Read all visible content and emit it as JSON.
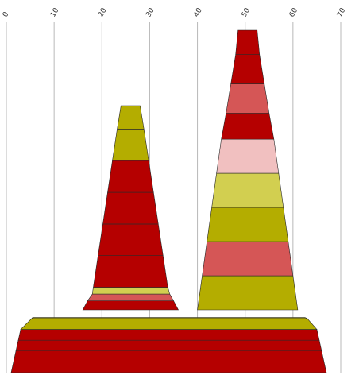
{
  "chart_data": {
    "type": "area",
    "subtype": "stacked trapezoid cones",
    "title": "",
    "xlabel": "",
    "ylabel": "",
    "x_axis": {
      "position": "top",
      "range": [
        0,
        70
      ],
      "ticks": [
        0,
        10,
        20,
        30,
        40,
        50,
        60,
        70
      ],
      "tick_labels": [
        "0",
        "10",
        "20",
        "30",
        "40",
        "50",
        "60",
        "70"
      ],
      "tick_label_rotation": "-60deg",
      "grid": true
    },
    "legend": "none",
    "colors": {
      "dark_red": "#b50000",
      "coral": "#d55656",
      "pink": "#f1c0c0",
      "olive": "#b4ad00",
      "light_olive": "#d2cf50"
    },
    "shapes": [
      {
        "name": "base",
        "segments": [
          {
            "left": 1.0,
            "right": 67.0,
            "color": "dark_red"
          },
          {
            "left": 1.5,
            "right": 66.5,
            "color": "dark_red"
          },
          {
            "left": 2.0,
            "right": 66.0,
            "color": "dark_red"
          },
          {
            "left": 2.5,
            "right": 65.5,
            "color": "dark_red"
          },
          {
            "left": 3.0,
            "right": 65.0,
            "color": "dark_red"
          },
          {
            "left": 5.3,
            "right": 63.0,
            "color": "olive"
          },
          {
            "left": 5.5,
            "right": 62.5,
            "color": "olive"
          }
        ]
      },
      {
        "name": "left-cone",
        "segments": [
          {
            "left": 16.0,
            "right": 36.0,
            "color": "dark_red"
          },
          {
            "left": 17.0,
            "right": 35.0,
            "color": "dark_red"
          },
          {
            "left": 18.0,
            "right": 34.2,
            "color": "coral"
          },
          {
            "left": 18.2,
            "right": 33.8,
            "color": "light_olive"
          },
          {
            "left": 19.2,
            "right": 32.8,
            "color": "dark_red"
          },
          {
            "left": 20.2,
            "right": 31.8,
            "color": "dark_red"
          },
          {
            "left": 21.2,
            "right": 30.8,
            "color": "dark_red"
          },
          {
            "left": 22.2,
            "right": 29.8,
            "color": "dark_red"
          },
          {
            "left": 23.2,
            "right": 28.8,
            "color": "olive"
          },
          {
            "left": 24.0,
            "right": 28.0,
            "color": "olive"
          }
        ]
      },
      {
        "name": "right-cone",
        "segments": [
          {
            "left": 40.0,
            "right": 61.0,
            "color": "olive"
          },
          {
            "left": 41.0,
            "right": 60.0,
            "color": "olive"
          },
          {
            "left": 42.0,
            "right": 59.0,
            "color": "coral"
          },
          {
            "left": 43.0,
            "right": 58.0,
            "color": "olive"
          },
          {
            "left": 44.0,
            "right": 57.0,
            "color": "light_olive"
          },
          {
            "left": 45.0,
            "right": 56.0,
            "color": "pink"
          },
          {
            "left": 46.0,
            "right": 55.0,
            "color": "dark_red"
          },
          {
            "left": 47.0,
            "right": 54.0,
            "color": "coral"
          },
          {
            "left": 48.0,
            "right": 53.0,
            "color": "dark_red"
          },
          {
            "left": 48.5,
            "right": 52.5,
            "color": "dark_red"
          }
        ]
      }
    ]
  }
}
